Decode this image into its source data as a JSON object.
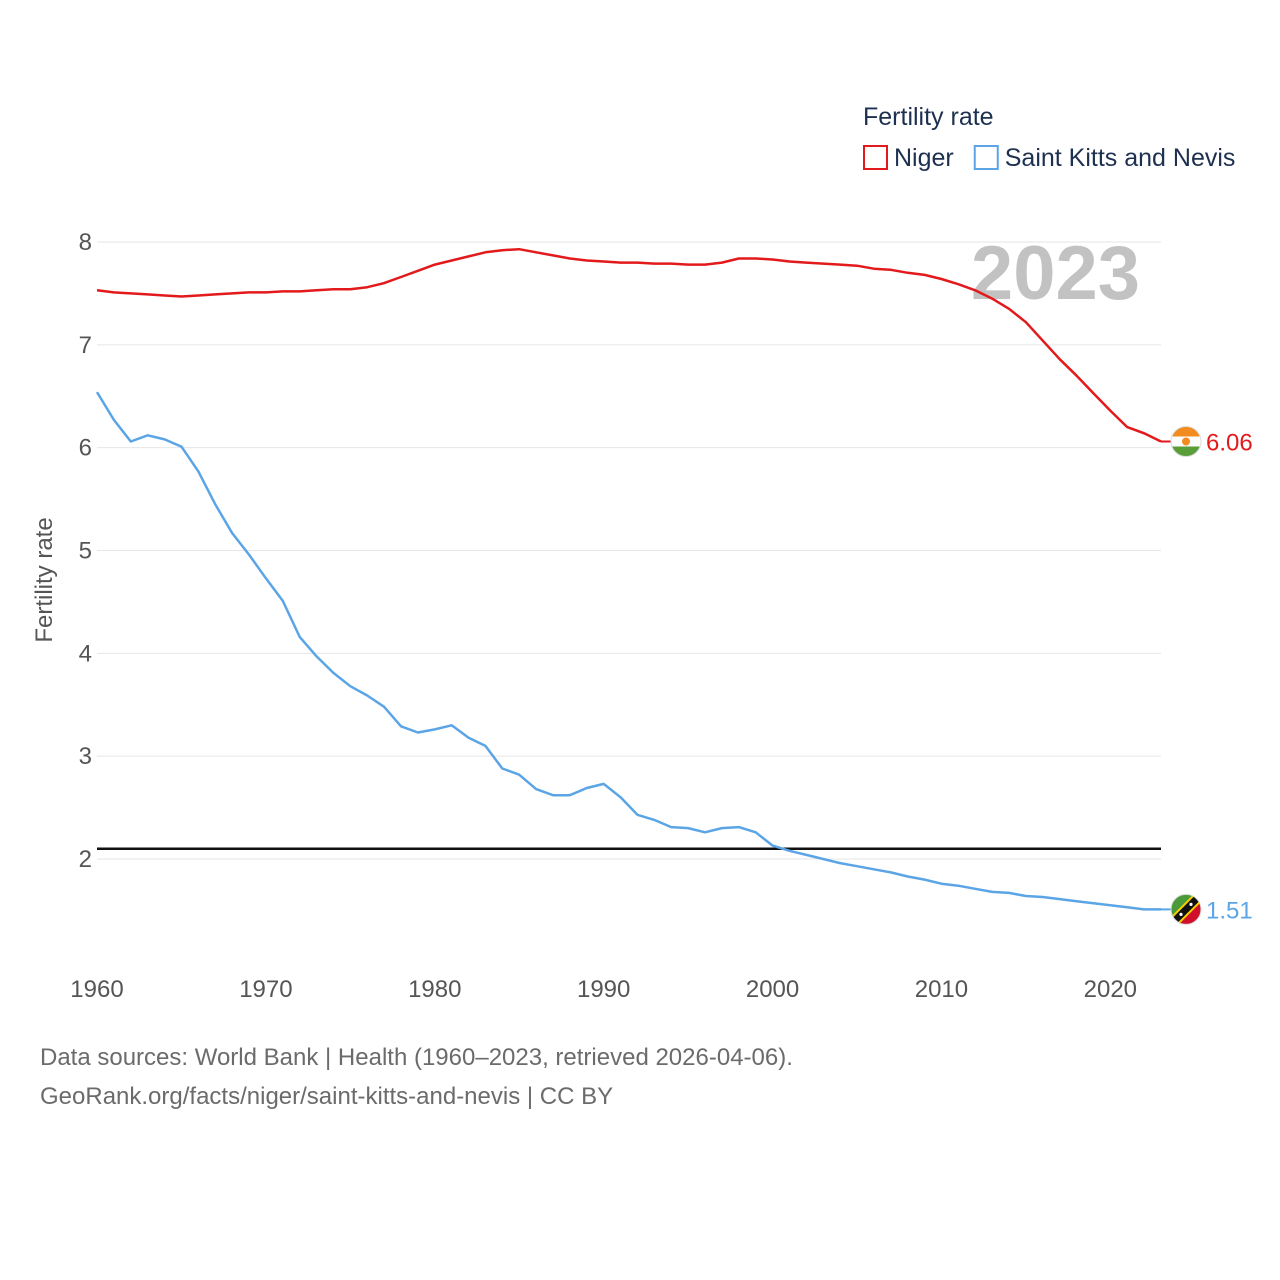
{
  "chart_data": {
    "type": "line",
    "title": "",
    "legend_title": "Fertility rate",
    "legend_position": "top-right",
    "ylabel": "Fertility rate",
    "xlabel": "",
    "current_year_label": "2023",
    "xlim": [
      1960,
      2023
    ],
    "ylim": [
      1,
      8
    ],
    "yticks": [
      2,
      3,
      4,
      5,
      6,
      7,
      8
    ],
    "xticks": [
      1960,
      1970,
      1980,
      1990,
      2000,
      2010,
      2020
    ],
    "reference_line": 2.1,
    "x": [
      1960,
      1961,
      1962,
      1963,
      1964,
      1965,
      1966,
      1967,
      1968,
      1969,
      1970,
      1971,
      1972,
      1973,
      1974,
      1975,
      1976,
      1977,
      1978,
      1979,
      1980,
      1981,
      1982,
      1983,
      1984,
      1985,
      1986,
      1987,
      1988,
      1989,
      1990,
      1991,
      1992,
      1993,
      1994,
      1995,
      1996,
      1997,
      1998,
      1999,
      2000,
      2001,
      2002,
      2003,
      2004,
      2005,
      2006,
      2007,
      2008,
      2009,
      2010,
      2011,
      2012,
      2013,
      2014,
      2015,
      2016,
      2017,
      2018,
      2019,
      2020,
      2021,
      2022,
      2023
    ],
    "series": [
      {
        "name": "Niger",
        "color": "#e31a1c",
        "end_label": "6.06",
        "values": [
          7.53,
          7.51,
          7.5,
          7.49,
          7.48,
          7.47,
          7.48,
          7.49,
          7.5,
          7.51,
          7.51,
          7.52,
          7.52,
          7.53,
          7.54,
          7.54,
          7.56,
          7.6,
          7.66,
          7.72,
          7.78,
          7.82,
          7.86,
          7.9,
          7.92,
          7.93,
          7.9,
          7.87,
          7.84,
          7.82,
          7.81,
          7.8,
          7.8,
          7.79,
          7.79,
          7.78,
          7.78,
          7.8,
          7.84,
          7.84,
          7.83,
          7.81,
          7.8,
          7.79,
          7.78,
          7.77,
          7.74,
          7.73,
          7.7,
          7.68,
          7.64,
          7.59,
          7.53,
          7.45,
          7.35,
          7.22,
          7.04,
          6.86,
          6.7,
          6.53,
          6.36,
          6.2,
          6.14,
          6.06
        ]
      },
      {
        "name": "Saint Kitts and Nevis",
        "color": "#5ba5e6",
        "end_label": "1.51",
        "values": [
          6.54,
          6.27,
          6.06,
          6.12,
          6.08,
          6.01,
          5.77,
          5.45,
          5.17,
          4.96,
          4.73,
          4.51,
          4.16,
          3.97,
          3.81,
          3.68,
          3.59,
          3.48,
          3.29,
          3.23,
          3.26,
          3.3,
          3.18,
          3.1,
          2.88,
          2.82,
          2.68,
          2.62,
          2.62,
          2.69,
          2.73,
          2.6,
          2.43,
          2.38,
          2.31,
          2.3,
          2.26,
          2.3,
          2.31,
          2.26,
          2.13,
          2.08,
          2.04,
          2.0,
          1.96,
          1.93,
          1.9,
          1.87,
          1.83,
          1.8,
          1.76,
          1.74,
          1.71,
          1.68,
          1.67,
          1.64,
          1.63,
          1.61,
          1.59,
          1.57,
          1.55,
          1.53,
          1.51,
          1.51
        ]
      }
    ]
  },
  "source": {
    "line1": "Data sources: World Bank | Health (1960–2023, retrieved 2026-04-06).",
    "line2": "GeoRank.org/facts/niger/saint-kitts-and-nevis | CC BY"
  }
}
